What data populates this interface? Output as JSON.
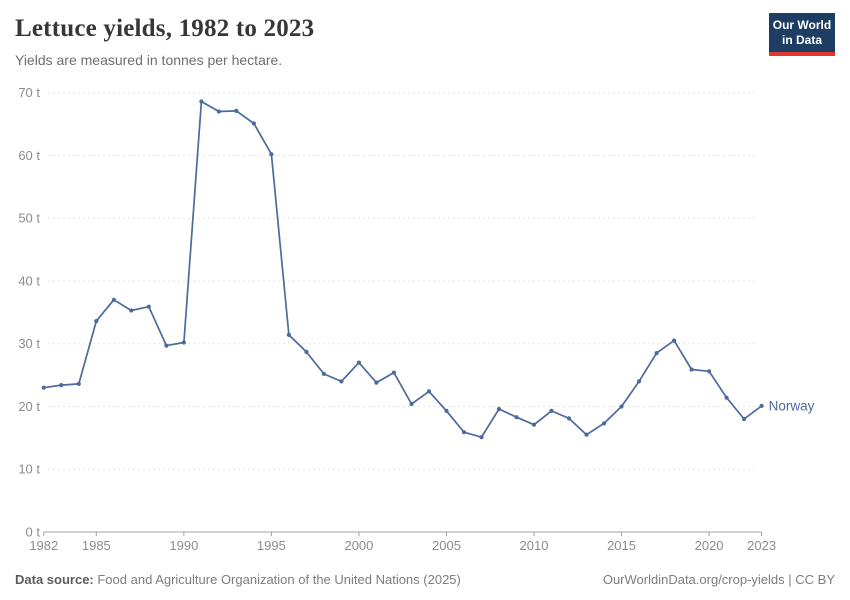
{
  "header": {
    "title": "Lettuce yields, 1982 to 2023",
    "subtitle": "Yields are measured in tonnes per hectare.",
    "logo": {
      "line1": "Our World",
      "line2": "in Data",
      "bg_color": "#1d3d63",
      "stripe_color": "#e0362d"
    }
  },
  "chart_data": {
    "type": "line",
    "title": "Lettuce yields, 1982 to 2023",
    "subtitle": "Yields are measured in tonnes per hectare.",
    "xlabel": "",
    "ylabel": "",
    "unit_suffix": " t",
    "xlim": [
      1982,
      2023
    ],
    "ylim": [
      0,
      70
    ],
    "x_ticks": [
      1982,
      1985,
      1990,
      1995,
      2000,
      2005,
      2010,
      2015,
      2020,
      2023
    ],
    "y_ticks": [
      0,
      10,
      20,
      30,
      40,
      50,
      60,
      70
    ],
    "grid": true,
    "legend_position": "end-of-line",
    "series": [
      {
        "name": "Norway",
        "color": "#4c6a9c",
        "x": [
          1982,
          1983,
          1984,
          1985,
          1986,
          1987,
          1988,
          1989,
          1990,
          1991,
          1992,
          1993,
          1994,
          1995,
          1996,
          1997,
          1998,
          1999,
          2000,
          2001,
          2002,
          2003,
          2004,
          2005,
          2006,
          2007,
          2008,
          2009,
          2010,
          2011,
          2012,
          2013,
          2014,
          2015,
          2016,
          2017,
          2018,
          2019,
          2020,
          2021,
          2022,
          2023
        ],
        "values": [
          23.0,
          23.4,
          23.6,
          33.6,
          37.0,
          35.3,
          35.9,
          29.7,
          30.2,
          68.6,
          67.0,
          67.1,
          65.1,
          60.2,
          31.4,
          28.7,
          25.2,
          24.0,
          27.0,
          23.8,
          25.4,
          20.4,
          22.4,
          19.3,
          15.9,
          15.1,
          19.6,
          18.3,
          17.1,
          19.3,
          18.1,
          15.5,
          17.3,
          20.0,
          24.0,
          28.5,
          30.5,
          25.9,
          25.6,
          21.4,
          18.0,
          20.1
        ]
      }
    ]
  },
  "colors": {
    "grid_line": "#e3e3e3",
    "axis_line": "#a3a3a3",
    "tick_label": "#8c8c8c",
    "series_blue": "#4c6a9c"
  },
  "footer": {
    "source_label": "Data source:",
    "source_text": " Food and Agriculture Organization of the United Nations (2025)",
    "right_text": "OurWorldinData.org/crop-yields | CC BY"
  }
}
